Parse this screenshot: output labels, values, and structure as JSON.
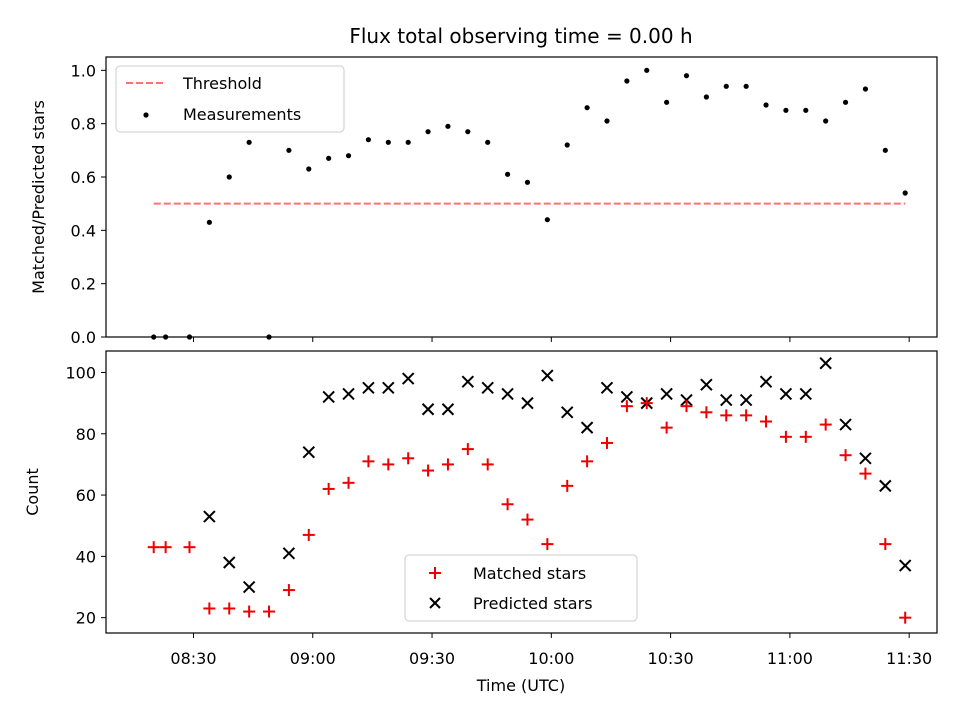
{
  "chart_data": [
    {
      "type": "scatter",
      "title": "Flux total observing time = 0.00 h",
      "xlabel": "",
      "ylabel": "Matched/Predicted stars",
      "ylim": [
        0,
        1.05
      ],
      "yticks": [
        0.0,
        0.2,
        0.4,
        0.6,
        0.8,
        1.0
      ],
      "ytick_labels": [
        "0.0",
        "0.2",
        "0.4",
        "0.6",
        "0.8",
        "1.0"
      ],
      "legend_position": "upper-left",
      "threshold": {
        "name": "Threshold",
        "value": 0.5,
        "x_start": "08:20",
        "x_end": "11:29",
        "color": "#ff7070"
      },
      "series": [
        {
          "name": "Measurements",
          "color": "#000000",
          "points": [
            [
              "08:20",
              0.0
            ],
            [
              "08:23",
              0.0
            ],
            [
              "08:29",
              0.0
            ],
            [
              "08:34",
              0.43
            ],
            [
              "08:39",
              0.6
            ],
            [
              "08:44",
              0.73
            ],
            [
              "08:49",
              0.0
            ],
            [
              "08:54",
              0.7
            ],
            [
              "08:59",
              0.63
            ],
            [
              "09:04",
              0.67
            ],
            [
              "09:09",
              0.68
            ],
            [
              "09:14",
              0.74
            ],
            [
              "09:19",
              0.73
            ],
            [
              "09:24",
              0.73
            ],
            [
              "09:29",
              0.77
            ],
            [
              "09:34",
              0.79
            ],
            [
              "09:39",
              0.77
            ],
            [
              "09:44",
              0.73
            ],
            [
              "09:49",
              0.61
            ],
            [
              "09:54",
              0.58
            ],
            [
              "09:59",
              0.44
            ],
            [
              "10:04",
              0.72
            ],
            [
              "10:09",
              0.86
            ],
            [
              "10:14",
              0.81
            ],
            [
              "10:19",
              0.96
            ],
            [
              "10:24",
              1.0
            ],
            [
              "10:29",
              0.88
            ],
            [
              "10:34",
              0.98
            ],
            [
              "10:39",
              0.9
            ],
            [
              "10:44",
              0.94
            ],
            [
              "10:49",
              0.94
            ],
            [
              "10:54",
              0.87
            ],
            [
              "10:59",
              0.85
            ],
            [
              "11:04",
              0.85
            ],
            [
              "11:09",
              0.81
            ],
            [
              "11:14",
              0.88
            ],
            [
              "11:19",
              0.93
            ],
            [
              "11:24",
              0.7
            ],
            [
              "11:29",
              0.54
            ]
          ]
        }
      ]
    },
    {
      "type": "scatter",
      "title": "",
      "xlabel": "Time (UTC)",
      "ylabel": "Count",
      "ylim": [
        15,
        107
      ],
      "yticks": [
        20,
        40,
        60,
        80,
        100
      ],
      "ytick_labels": [
        "20",
        "40",
        "60",
        "80",
        "100"
      ],
      "xlim": [
        "08:08",
        "11:37"
      ],
      "xticks": [
        "08:30",
        "09:00",
        "09:30",
        "10:00",
        "10:30",
        "11:00",
        "11:30"
      ],
      "legend_position": "lower-center",
      "series": [
        {
          "name": "Matched stars",
          "marker": "+",
          "color": "#ee0000",
          "points": [
            [
              "08:20",
              43
            ],
            [
              "08:23",
              43
            ],
            [
              "08:29",
              43
            ],
            [
              "08:34",
              23
            ],
            [
              "08:39",
              23
            ],
            [
              "08:44",
              22
            ],
            [
              "08:49",
              22
            ],
            [
              "08:54",
              29
            ],
            [
              "08:59",
              47
            ],
            [
              "09:04",
              62
            ],
            [
              "09:09",
              64
            ],
            [
              "09:14",
              71
            ],
            [
              "09:19",
              70
            ],
            [
              "09:24",
              72
            ],
            [
              "09:29",
              68
            ],
            [
              "09:34",
              70
            ],
            [
              "09:39",
              75
            ],
            [
              "09:44",
              70
            ],
            [
              "09:49",
              57
            ],
            [
              "09:54",
              52
            ],
            [
              "09:59",
              44
            ],
            [
              "10:04",
              63
            ],
            [
              "10:09",
              71
            ],
            [
              "10:14",
              77
            ],
            [
              "10:19",
              89
            ],
            [
              "10:24",
              90
            ],
            [
              "10:29",
              82
            ],
            [
              "10:34",
              89
            ],
            [
              "10:39",
              87
            ],
            [
              "10:44",
              86
            ],
            [
              "10:49",
              86
            ],
            [
              "10:54",
              84
            ],
            [
              "10:59",
              79
            ],
            [
              "11:04",
              79
            ],
            [
              "11:09",
              83
            ],
            [
              "11:14",
              73
            ],
            [
              "11:19",
              67
            ],
            [
              "11:24",
              44
            ],
            [
              "11:29",
              20
            ]
          ]
        },
        {
          "name": "Predicted stars",
          "marker": "x",
          "color": "#000000",
          "points": [
            [
              "08:34",
              53
            ],
            [
              "08:39",
              38
            ],
            [
              "08:44",
              30
            ],
            [
              "08:54",
              41
            ],
            [
              "08:59",
              74
            ],
            [
              "09:04",
              92
            ],
            [
              "09:09",
              93
            ],
            [
              "09:14",
              95
            ],
            [
              "09:19",
              95
            ],
            [
              "09:24",
              98
            ],
            [
              "09:29",
              88
            ],
            [
              "09:34",
              88
            ],
            [
              "09:39",
              97
            ],
            [
              "09:44",
              95
            ],
            [
              "09:49",
              93
            ],
            [
              "09:54",
              90
            ],
            [
              "09:59",
              99
            ],
            [
              "10:04",
              87
            ],
            [
              "10:09",
              82
            ],
            [
              "10:14",
              95
            ],
            [
              "10:19",
              92
            ],
            [
              "10:24",
              90
            ],
            [
              "10:29",
              93
            ],
            [
              "10:34",
              91
            ],
            [
              "10:39",
              96
            ],
            [
              "10:44",
              91
            ],
            [
              "10:49",
              91
            ],
            [
              "10:54",
              97
            ],
            [
              "10:59",
              93
            ],
            [
              "11:04",
              93
            ],
            [
              "11:09",
              103
            ],
            [
              "11:14",
              83
            ],
            [
              "11:19",
              72
            ],
            [
              "11:24",
              63
            ],
            [
              "11:29",
              37
            ]
          ]
        }
      ]
    }
  ]
}
